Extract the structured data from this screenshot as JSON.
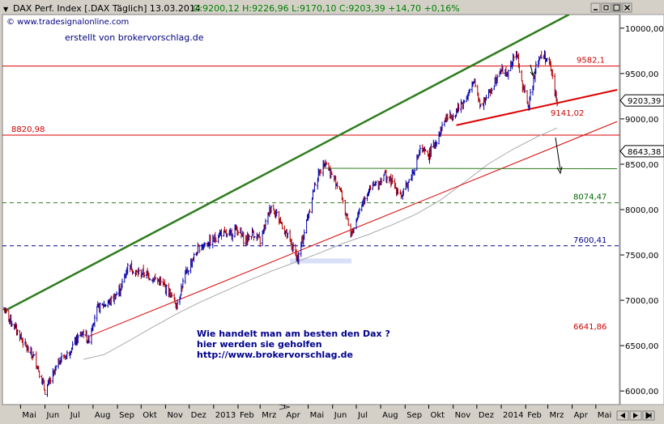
{
  "header": {
    "arrow": "▼",
    "title": "DAX Perf. Index [.DAX  Täglich] 13.03.2014",
    "ohlc": "O:9200,12 H:9226,96 L:9170,10 C:9203,39 +14,70 +0,16%",
    "title_color": "#000000",
    "ohlc_color": "#008000"
  },
  "window_controls": [
    "minimize-icon",
    "restore-icon",
    "maximize-icon",
    "close-icon"
  ],
  "watermarks": {
    "site": "© www.tradesignalonline.com",
    "author": "erstellt von brokervorschlag.de"
  },
  "annotation": {
    "line1": "Wie handelt man am besten  den Dax ?",
    "line2": "hier werden sie geholfen",
    "line3": "http://www.brokervorschlag.de",
    "color": "#00008b"
  },
  "level_labels": [
    {
      "text": "9582,1",
      "color": "#cc0000"
    },
    {
      "text": "9141,02",
      "color": "#cc0000"
    },
    {
      "text": "8820,98",
      "color": "#cc0000"
    },
    {
      "text": "8074,47",
      "color": "#006400"
    },
    {
      "text": "7600,41",
      "color": "#00008b"
    },
    {
      "text": "6641,86",
      "color": "#cc0000"
    }
  ],
  "price_badges": [
    "9203,39",
    "8643,38"
  ],
  "chart_data": {
    "type": "line",
    "series_style": "ohlc-bars",
    "ylim": [
      5850,
      10150
    ],
    "y_ticks": [
      "10000,00",
      "9500,00",
      "9000,00",
      "8500,00",
      "8000,00",
      "7500,00",
      "7000,00",
      "6500,00",
      "6000,00"
    ],
    "y_tick_values": [
      10000,
      9500,
      9000,
      8500,
      8000,
      7500,
      7000,
      6500,
      6000
    ],
    "x_ticks": [
      "Mai",
      "Jun",
      "Jul",
      "Aug",
      "Sep",
      "Okt",
      "Nov",
      "Dez",
      "2013",
      "Feb",
      "Mrz",
      "Apr",
      "Mai",
      "Jun",
      "Jul",
      "Aug",
      "Sep",
      "Okt",
      "Nov",
      "Dez",
      "2014",
      "Feb",
      "Mrz",
      "Apr",
      "Mai"
    ],
    "x_tick_dates": [
      "2012-05-01",
      "2012-06-01",
      "2012-07-01",
      "2012-08-01",
      "2012-09-01",
      "2012-10-01",
      "2012-11-01",
      "2012-12-01",
      "2013-01-01",
      "2013-02-01",
      "2013-03-01",
      "2013-04-01",
      "2013-05-01",
      "2013-06-01",
      "2013-07-01",
      "2013-08-01",
      "2013-09-01",
      "2013-10-01",
      "2013-11-01",
      "2013-12-01",
      "2014-01-01",
      "2014-02-01",
      "2014-03-01",
      "2014-04-01",
      "2014-05-01"
    ],
    "price": {
      "name": "DAX Perf. Index",
      "up_color": "#0000aa",
      "down_color": "#b00000",
      "points": [
        [
          "2012-04-10",
          6900
        ],
        [
          "2012-04-20",
          6750
        ],
        [
          "2012-05-01",
          6600
        ],
        [
          "2012-05-10",
          6450
        ],
        [
          "2012-05-20",
          6350
        ],
        [
          "2012-06-01",
          6000
        ],
        [
          "2012-06-10",
          6150
        ],
        [
          "2012-06-20",
          6350
        ],
        [
          "2012-06-29",
          6400
        ],
        [
          "2012-07-10",
          6550
        ],
        [
          "2012-07-20",
          6650
        ],
        [
          "2012-07-26",
          6550
        ],
        [
          "2012-08-05",
          6900
        ],
        [
          "2012-08-15",
          6950
        ],
        [
          "2012-08-25",
          7000
        ],
        [
          "2012-09-06",
          7150
        ],
        [
          "2012-09-15",
          7400
        ],
        [
          "2012-09-25",
          7300
        ],
        [
          "2012-10-05",
          7300
        ],
        [
          "2012-10-15",
          7250
        ],
        [
          "2012-10-25",
          7200
        ],
        [
          "2012-11-05",
          7100
        ],
        [
          "2012-11-15",
          6950
        ],
        [
          "2012-11-25",
          7250
        ],
        [
          "2012-12-05",
          7450
        ],
        [
          "2012-12-15",
          7600
        ],
        [
          "2012-12-30",
          7650
        ],
        [
          "2013-01-10",
          7750
        ],
        [
          "2013-01-20",
          7700
        ],
        [
          "2013-01-30",
          7800
        ],
        [
          "2013-02-10",
          7650
        ],
        [
          "2013-02-20",
          7750
        ],
        [
          "2013-03-01",
          7650
        ],
        [
          "2013-03-15",
          8050
        ],
        [
          "2013-03-25",
          7900
        ],
        [
          "2013-04-05",
          7700
        ],
        [
          "2013-04-18",
          7450
        ],
        [
          "2013-04-30",
          7900
        ],
        [
          "2013-05-10",
          8300
        ],
        [
          "2013-05-22",
          8550
        ],
        [
          "2013-06-01",
          8350
        ],
        [
          "2013-06-10",
          8250
        ],
        [
          "2013-06-24",
          7700
        ],
        [
          "2013-07-05",
          8000
        ],
        [
          "2013-07-15",
          8200
        ],
        [
          "2013-07-30",
          8300
        ],
        [
          "2013-08-05",
          8400
        ],
        [
          "2013-08-15",
          8300
        ],
        [
          "2013-08-28",
          8150
        ],
        [
          "2013-09-10",
          8400
        ],
        [
          "2013-09-20",
          8650
        ],
        [
          "2013-10-01",
          8600
        ],
        [
          "2013-10-10",
          8750
        ],
        [
          "2013-10-22",
          9000
        ],
        [
          "2013-11-01",
          9050
        ],
        [
          "2013-11-15",
          9200
        ],
        [
          "2013-11-28",
          9400
        ],
        [
          "2013-12-06",
          9150
        ],
        [
          "2013-12-18",
          9300
        ],
        [
          "2013-12-30",
          9550
        ],
        [
          "2014-01-10",
          9500
        ],
        [
          "2014-01-20",
          9750
        ],
        [
          "2014-01-28",
          9350
        ],
        [
          "2014-02-05",
          9150
        ],
        [
          "2014-02-15",
          9650
        ],
        [
          "2014-02-25",
          9700
        ],
        [
          "2014-03-05",
          9550
        ],
        [
          "2014-03-10",
          9300
        ],
        [
          "2014-03-13",
          9203
        ]
      ]
    },
    "moving_average": {
      "color": "#a8a8a8",
      "points": [
        [
          "2012-07-20",
          6350
        ],
        [
          "2012-08-15",
          6400
        ],
        [
          "2012-09-15",
          6550
        ],
        [
          "2012-10-15",
          6700
        ],
        [
          "2012-11-15",
          6850
        ],
        [
          "2012-12-15",
          6980
        ],
        [
          "2013-01-15",
          7100
        ],
        [
          "2013-02-15",
          7220
        ],
        [
          "2013-03-15",
          7320
        ],
        [
          "2013-04-15",
          7420
        ],
        [
          "2013-05-15",
          7520
        ],
        [
          "2013-06-15",
          7630
        ],
        [
          "2013-07-15",
          7720
        ],
        [
          "2013-08-15",
          7830
        ],
        [
          "2013-09-15",
          7950
        ],
        [
          "2013-10-15",
          8100
        ],
        [
          "2013-11-15",
          8300
        ],
        [
          "2013-12-15",
          8500
        ],
        [
          "2014-01-15",
          8660
        ],
        [
          "2014-02-15",
          8800
        ],
        [
          "2014-03-13",
          8900
        ]
      ]
    },
    "trendlines": [
      {
        "color": "#2e7d1e",
        "width": 2.5,
        "from": [
          "2012-04-10",
          6880
        ],
        "to": [
          "2014-03-28",
          10150
        ]
      },
      {
        "color": "#dd0000",
        "width": 1,
        "from": [
          "2012-07-26",
          6600
        ],
        "to": [
          "2014-05-28",
          8970
        ]
      },
      {
        "color": "#dd0000",
        "width": 2,
        "from": [
          "2013-11-05",
          8930
        ],
        "to": [
          "2014-05-28",
          9320
        ]
      },
      {
        "color": "#2e7d1e",
        "width": 1,
        "from": [
          "2013-05-22",
          8455
        ],
        "to": [
          "2014-05-28",
          8450
        ]
      }
    ],
    "horizontal_levels": [
      {
        "value": 9582.1,
        "color": "#dd0000",
        "style": "solid"
      },
      {
        "value": 8820.98,
        "color": "#dd0000",
        "style": "solid"
      },
      {
        "value": 8074.47,
        "color": "#2e7d1e",
        "style": "dashed"
      },
      {
        "value": 7600.41,
        "color": "#00008b",
        "style": "dashed"
      }
    ]
  }
}
